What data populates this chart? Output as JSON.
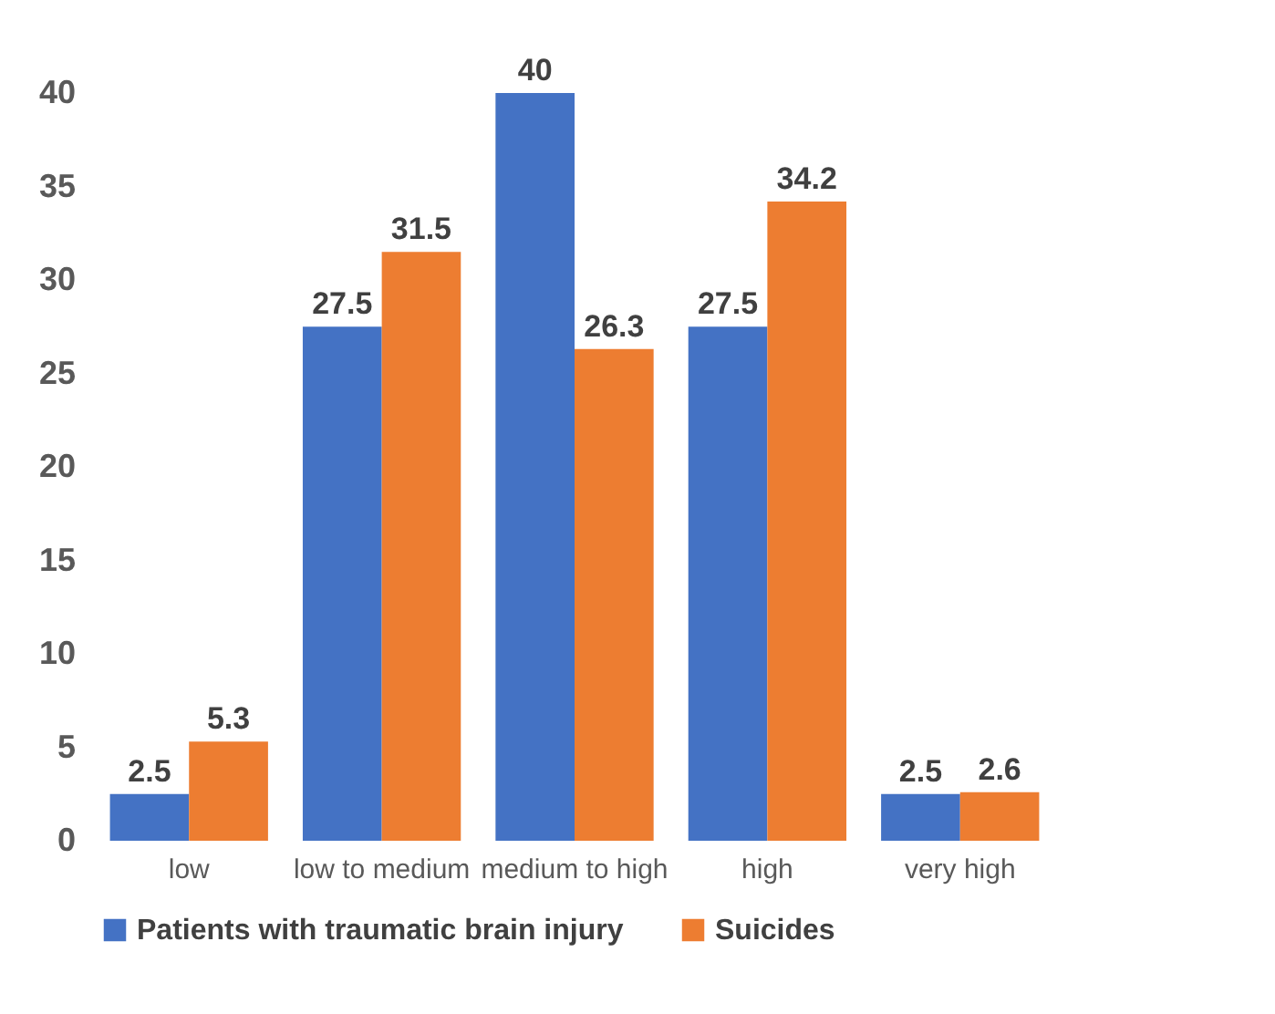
{
  "chart_data": {
    "type": "bar",
    "categories": [
      "low",
      "low to medium",
      "medium to high",
      "high",
      "very high"
    ],
    "series": [
      {
        "name": "Patients with traumatic brain injury",
        "color": "#4472c4",
        "values": [
          2.5,
          27.5,
          40,
          27.5,
          2.5
        ]
      },
      {
        "name": "Suicides",
        "color": "#ed7d31",
        "values": [
          5.3,
          31.5,
          26.3,
          34.2,
          2.6
        ]
      }
    ],
    "ylim": [
      0,
      40
    ],
    "yticks": [
      0,
      5,
      10,
      15,
      20,
      25,
      30,
      35,
      40
    ],
    "grid": false,
    "legend": "bottom",
    "data_labels": true
  }
}
